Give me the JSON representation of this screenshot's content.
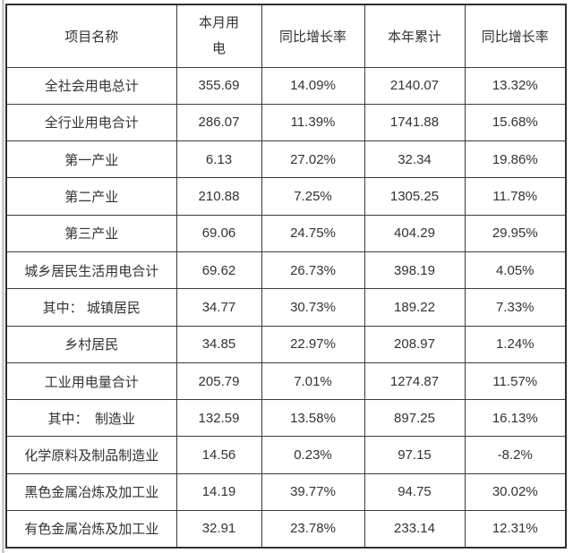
{
  "page": {
    "background": "#ffffff",
    "left_strip_color": "#cccccc",
    "border_color": "#333333",
    "text_color": "#333333"
  },
  "table": {
    "columns": [
      "项目名称",
      "本月用电",
      "同比增长率",
      "本年累计",
      "同比增长率"
    ],
    "rows": [
      {
        "name": "全社会用电总计",
        "month": "355.69",
        "month_yoy": "14.09%",
        "ytd": "2140.07",
        "ytd_yoy": "13.32%"
      },
      {
        "name": "全行业用电合计",
        "month": "286.07",
        "month_yoy": "11.39%",
        "ytd": "1741.88",
        "ytd_yoy": "15.68%"
      },
      {
        "name": "第一产业",
        "month": "6.13",
        "month_yoy": "27.02%",
        "ytd": "32.34",
        "ytd_yoy": "19.86%"
      },
      {
        "name": "第二产业",
        "month": "210.88",
        "month_yoy": "7.25%",
        "ytd": "1305.25",
        "ytd_yoy": "11.78%"
      },
      {
        "name": "第三产业",
        "month": "69.06",
        "month_yoy": "24.75%",
        "ytd": "404.29",
        "ytd_yoy": "29.95%"
      },
      {
        "name": "城乡居民生活用电合计",
        "month": "69.62",
        "month_yoy": "26.73%",
        "ytd": "398.19",
        "ytd_yoy": "4.05%"
      },
      {
        "name": "其中： 城镇居民",
        "month": "34.77",
        "month_yoy": "30.73%",
        "ytd": "189.22",
        "ytd_yoy": "7.33%"
      },
      {
        "name": "乡村居民",
        "month": "34.85",
        "month_yoy": "22.97%",
        "ytd": "208.97",
        "ytd_yoy": "1.24%"
      },
      {
        "name": "工业用电量合计",
        "month": "205.79",
        "month_yoy": "7.01%",
        "ytd": "1274.87",
        "ytd_yoy": "11.57%"
      },
      {
        "name": "其中：　制造业",
        "month": "132.59",
        "month_yoy": "13.58%",
        "ytd": "897.25",
        "ytd_yoy": "16.13%"
      },
      {
        "name": "化学原料及制品制造业",
        "month": "14.56",
        "month_yoy": "0.23%",
        "ytd": "97.15",
        "ytd_yoy": "-8.2%"
      },
      {
        "name": "黑色金属冶炼及加工业",
        "month": "14.19",
        "month_yoy": "39.77%",
        "ytd": "94.75",
        "ytd_yoy": "30.02%"
      },
      {
        "name": "有色金属冶炼及加工业",
        "month": "32.91",
        "month_yoy": "23.78%",
        "ytd": "233.14",
        "ytd_yoy": "12.31%"
      }
    ]
  }
}
